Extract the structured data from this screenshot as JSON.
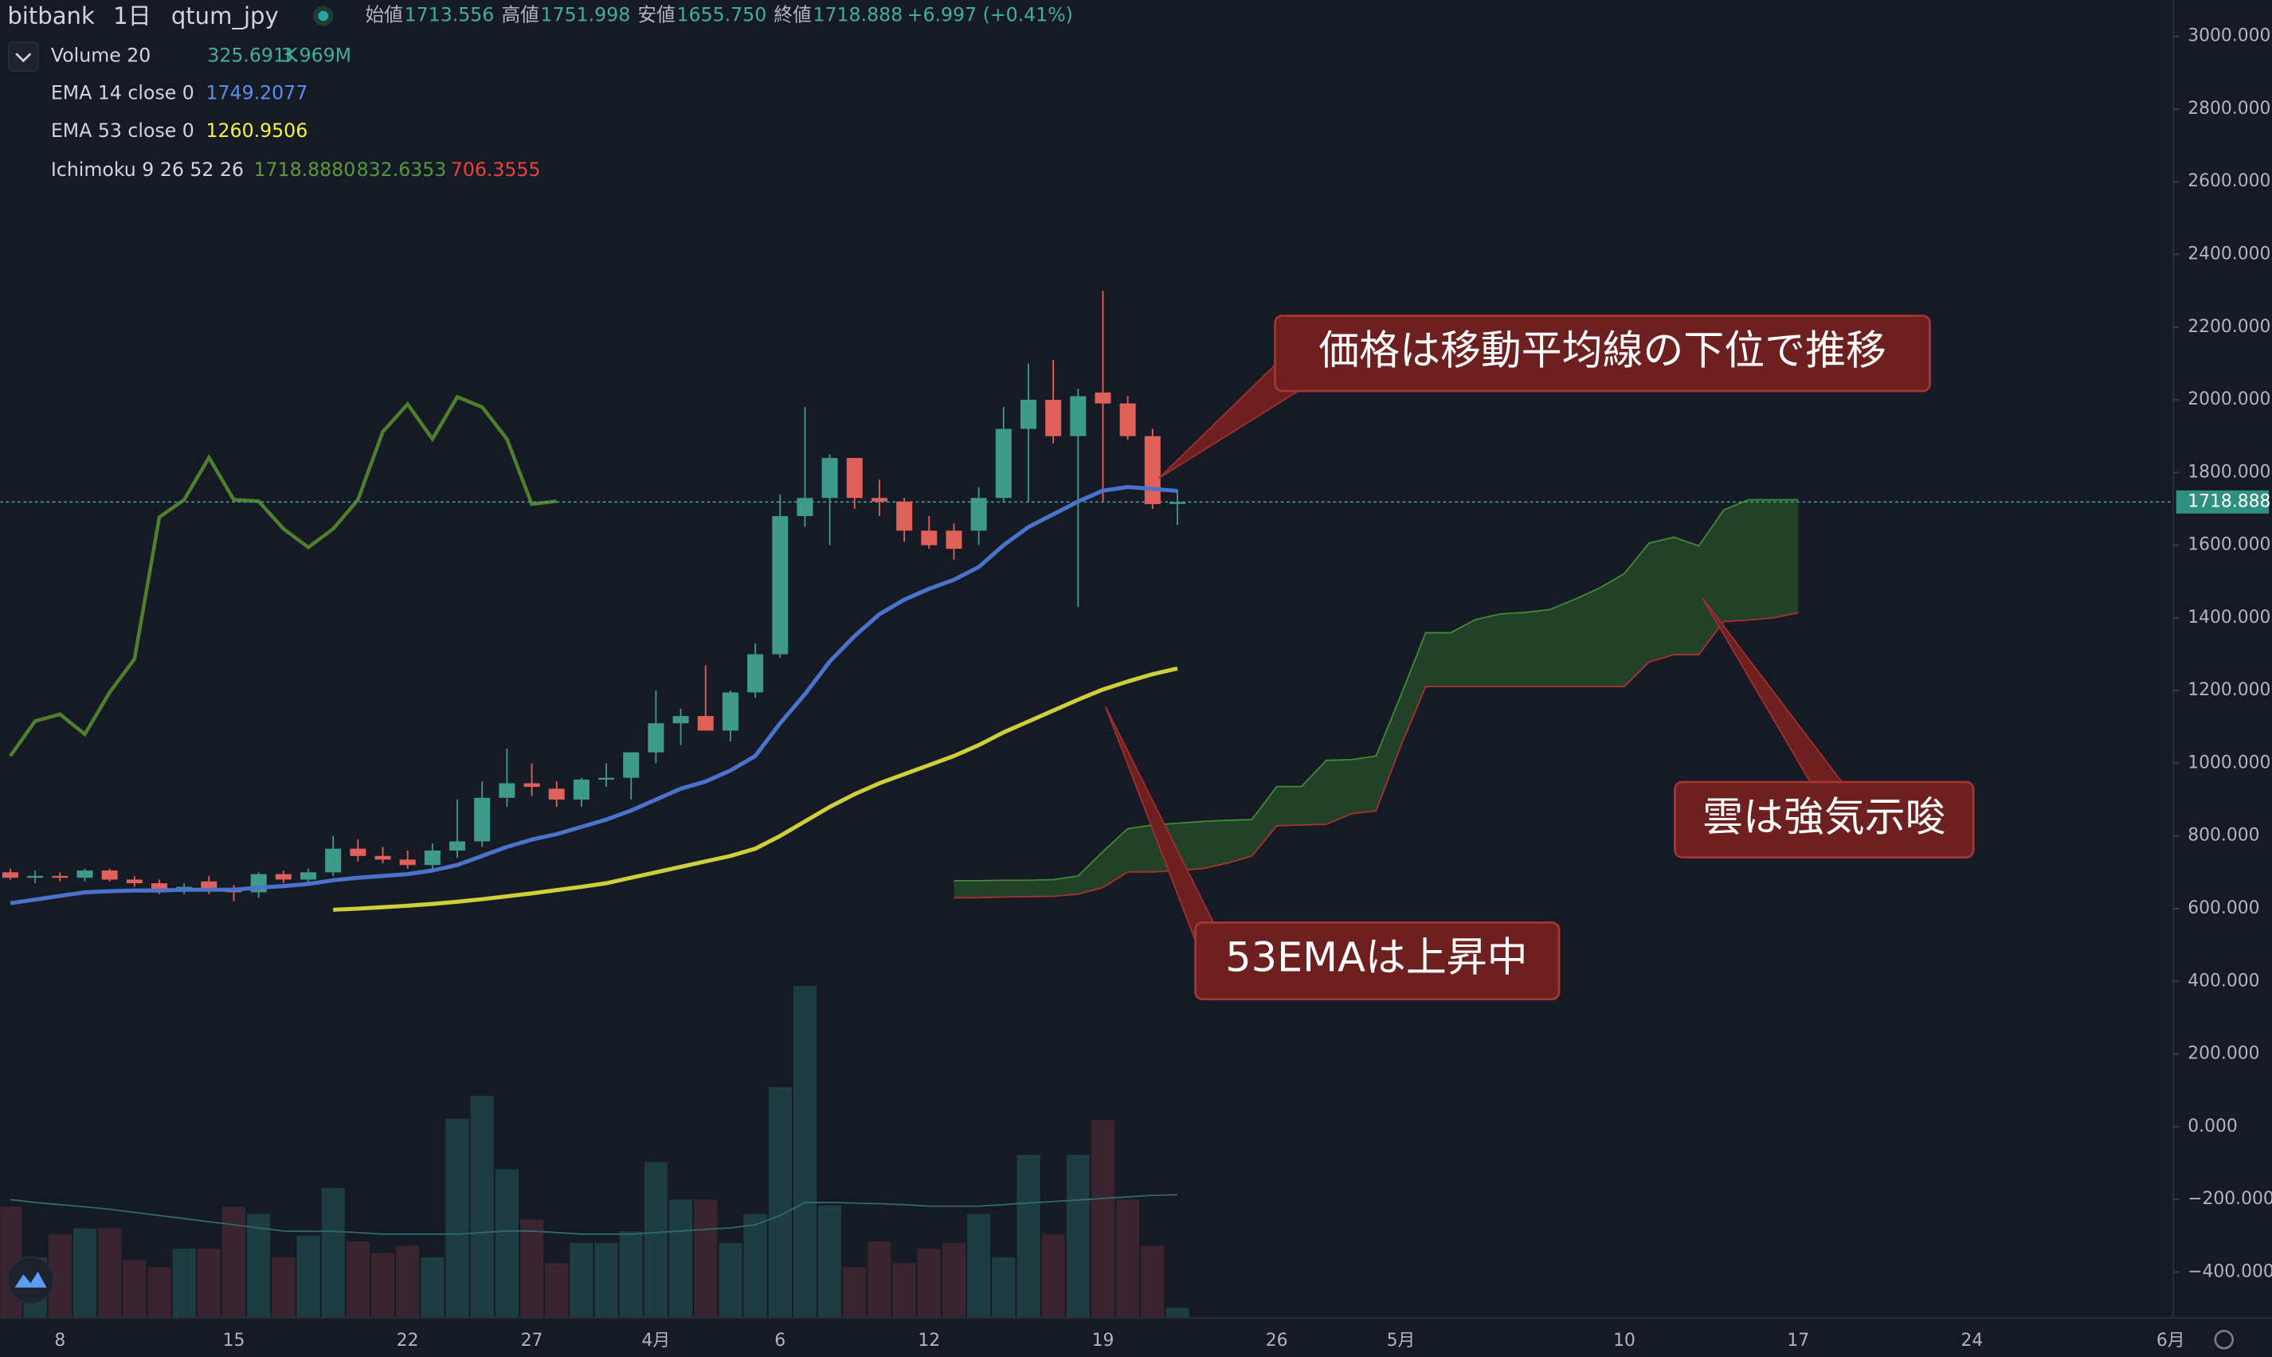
{
  "header": {
    "exchange": "bitbank",
    "interval": "1日",
    "symbol": "qtum_jpy",
    "ohlc": [
      {
        "label": "始値",
        "value": "1713.556"
      },
      {
        "label": "高値",
        "value": "1751.998"
      },
      {
        "label": "安値",
        "value": "1655.750"
      },
      {
        "label": "終値",
        "value": "1718.888"
      }
    ],
    "change": "+6.997 (+0.41%)"
  },
  "annotations": [
    {
      "text": "価格は移動平均線の下位で推移"
    },
    {
      "text": "雲は強気示唆"
    },
    {
      "text": "53EMAは上昇中"
    }
  ],
  "chart_data": {
    "type": "candlestick",
    "categories": [
      null,
      null,
      "8",
      null,
      null,
      null,
      null,
      null,
      null,
      "15",
      null,
      null,
      null,
      null,
      null,
      null,
      "22",
      null,
      null,
      null,
      null,
      "27",
      null,
      null,
      null,
      null,
      "4月",
      null,
      null,
      null,
      null,
      "6",
      null,
      null,
      null,
      null,
      null,
      "12",
      null,
      null,
      null,
      null,
      null,
      null,
      "19",
      null,
      null,
      null,
      null,
      null,
      null,
      "26",
      null,
      null,
      null,
      null,
      "5月",
      null,
      null,
      null,
      null,
      null,
      null,
      null,
      null,
      "10",
      null,
      null,
      null,
      null,
      null,
      null,
      "17",
      null,
      null,
      null,
      null,
      null,
      null,
      "24",
      null,
      null,
      null,
      null,
      null,
      null,
      null,
      "6月"
    ],
    "ylim": [
      -526,
      3100
    ],
    "yticks": [
      {
        "value": 3000,
        "label": "3000.000"
      },
      {
        "value": 2800,
        "label": "2800.000"
      },
      {
        "value": 2600,
        "label": "2600.000"
      },
      {
        "value": 2400,
        "label": "2400.000"
      },
      {
        "value": 2200,
        "label": "2200.000"
      },
      {
        "value": 2000,
        "label": "2000.000"
      },
      {
        "value": 1800,
        "label": "1800.000"
      },
      {
        "value": 1600,
        "label": "1600.000"
      },
      {
        "value": 1400,
        "label": "1400.000"
      },
      {
        "value": 1200,
        "label": "1200.000"
      },
      {
        "value": 1000,
        "label": "1000.000"
      },
      {
        "value": 800,
        "label": "800.000"
      },
      {
        "value": 600,
        "label": "600.000"
      },
      {
        "value": 400,
        "label": "400.000"
      },
      {
        "value": 200,
        "label": "200.000"
      },
      {
        "value": 0,
        "label": "0.000"
      },
      {
        "value": -200,
        "label": "−200.000"
      },
      {
        "value": -400,
        "label": "−400.000"
      }
    ],
    "last_price": {
      "value": 1718.888,
      "label": "1718.888"
    },
    "up_color": "#3e9a8b",
    "down_color": "#e0605a",
    "open": [
      700,
      685,
      690,
      685,
      705,
      680,
      670,
      655,
      675,
      650,
      645,
      695,
      680,
      700,
      765,
      745,
      735,
      720,
      760,
      785,
      905,
      945,
      930,
      900,
      955,
      960,
      1030,
      1110,
      1130,
      1090,
      1195,
      1300,
      1680,
      1730,
      1840,
      1730,
      1720,
      1640,
      1640,
      1640,
      1730,
      1920,
      2000,
      1900,
      2020,
      1990,
      1900,
      1713.556,
      null,
      null,
      null,
      null,
      null,
      null,
      null,
      null,
      null,
      null,
      null,
      null,
      null,
      null,
      null,
      null,
      null,
      null,
      null,
      null,
      null,
      null,
      null,
      null,
      null,
      null,
      null,
      null,
      null,
      null,
      null,
      null,
      null,
      null,
      null,
      null,
      null,
      null,
      null,
      null
    ],
    "high": [
      710,
      705,
      700,
      710,
      710,
      690,
      680,
      670,
      690,
      665,
      700,
      705,
      710,
      800,
      790,
      770,
      760,
      780,
      900,
      950,
      1040,
      1000,
      950,
      960,
      1000,
      1030,
      1200,
      1150,
      1270,
      1200,
      1330,
      1740,
      1980,
      1850,
      1840,
      1780,
      1730,
      1680,
      1660,
      1760,
      1980,
      2100,
      2110,
      2030,
      2300,
      2010,
      1920,
      1751.998,
      null,
      null,
      null,
      null,
      null,
      null,
      null,
      null,
      null,
      null,
      null,
      null,
      null,
      null,
      null,
      null,
      null,
      null,
      null,
      null,
      null,
      null,
      null,
      null,
      null,
      null,
      null,
      null,
      null,
      null,
      null,
      null,
      null,
      null,
      null,
      null,
      null,
      null,
      null,
      null
    ],
    "low": [
      680,
      670,
      675,
      675,
      675,
      660,
      640,
      640,
      640,
      620,
      630,
      670,
      670,
      690,
      730,
      725,
      710,
      700,
      740,
      770,
      880,
      910,
      880,
      880,
      935,
      900,
      1000,
      1050,
      1100,
      1060,
      1180,
      1290,
      1650,
      1600,
      1700,
      1680,
      1610,
      1590,
      1560,
      1600,
      1720,
      1720,
      1880,
      1430,
      1720,
      1890,
      1700,
      1655.75,
      null,
      null,
      null,
      null,
      null,
      null,
      null,
      null,
      null,
      null,
      null,
      null,
      null,
      null,
      null,
      null,
      null,
      null,
      null,
      null,
      null,
      null,
      null,
      null,
      null,
      null,
      null,
      null,
      null,
      null,
      null,
      null,
      null,
      null,
      null,
      null,
      null,
      null,
      null,
      null
    ],
    "close": [
      685,
      690,
      685,
      705,
      680,
      670,
      650,
      660,
      650,
      645,
      695,
      680,
      700,
      765,
      745,
      735,
      720,
      760,
      785,
      905,
      945,
      935,
      900,
      955,
      960,
      1030,
      1110,
      1130,
      1090,
      1195,
      1300,
      1680,
      1730,
      1840,
      1730,
      1720,
      1640,
      1600,
      1590,
      1730,
      1920,
      2000,
      1900,
      2010,
      1990,
      1900,
      1713,
      1718.888,
      null,
      null,
      null,
      null,
      null,
      null,
      null,
      null,
      null,
      null,
      null,
      null,
      null,
      null,
      null,
      null,
      null,
      null,
      null,
      null,
      null,
      null,
      null,
      null,
      null,
      null,
      null,
      null,
      null,
      null,
      null,
      null,
      null,
      null,
      null,
      null,
      null,
      null,
      null,
      null
    ],
    "series": [
      {
        "name": "EMA 14 close 0",
        "color": "#4a74cc",
        "value_label_color": "#5b8def",
        "value_label": "1749.2077",
        "values": [
          615,
          625,
          635,
          645,
          648,
          650,
          650,
          652,
          652,
          652,
          658,
          662,
          668,
          678,
          685,
          690,
          695,
          705,
          720,
          745,
          770,
          790,
          805,
          825,
          845,
          870,
          900,
          930,
          950,
          980,
          1020,
          1110,
          1190,
          1280,
          1350,
          1410,
          1450,
          1480,
          1505,
          1540,
          1600,
          1650,
          1685,
          1720,
          1750,
          1760,
          1755,
          1749.2077,
          null,
          null,
          null,
          null,
          null,
          null,
          null,
          null,
          null,
          null,
          null,
          null,
          null,
          null,
          null,
          null,
          null,
          null,
          null,
          null,
          null,
          null,
          null,
          null,
          null,
          null,
          null,
          null,
          null,
          null,
          null,
          null,
          null,
          null,
          null,
          null,
          null,
          null,
          null,
          null
        ]
      },
      {
        "name": "EMA 53 close 0",
        "color": "#cfcf3a",
        "value_label_color": "#f5f53c",
        "value_label": "1260.9506",
        "values": [
          null,
          null,
          null,
          null,
          null,
          null,
          null,
          null,
          null,
          null,
          null,
          null,
          null,
          597,
          600,
          604,
          608,
          613,
          619,
          626,
          634,
          642,
          651,
          660,
          670,
          685,
          700,
          715,
          730,
          745,
          765,
          800,
          840,
          880,
          915,
          945,
          970,
          995,
          1020,
          1050,
          1085,
          1115,
          1145,
          1175,
          1203,
          1225,
          1245,
          1260.9506,
          null,
          null,
          null,
          null,
          null,
          null,
          null,
          null,
          null,
          null,
          null,
          null,
          null,
          null,
          null,
          null,
          null,
          null,
          null,
          null,
          null,
          null,
          null,
          null,
          null,
          null,
          null,
          null,
          null,
          null,
          null,
          null,
          null,
          null,
          null,
          null,
          null,
          null,
          null,
          null
        ]
      }
    ],
    "ichimoku": {
      "name": "Ichimoku 9 26 52 26",
      "cloud_color": "rgba(60,140,50,0.35)",
      "lines": [
        {
          "color": "#4f7f2c",
          "value_label_color": "#5f9a3a",
          "value_label": "1718.8880",
          "values": [
            1020,
            1116,
            1135,
            1080,
            1195,
            1287,
            1677,
            1725,
            1841,
            1725,
            1721,
            1645,
            1594,
            1645,
            1725,
            1912,
            1988,
            1892,
            2008,
            1980,
            1892,
            1713,
            1721,
            null,
            null,
            null,
            null,
            null,
            null,
            null,
            null,
            null,
            null,
            null,
            null,
            null,
            null,
            null,
            null,
            null,
            null,
            null,
            null,
            null,
            null,
            null,
            null,
            null,
            null,
            null,
            null,
            null,
            null,
            null,
            null,
            null,
            null,
            null,
            null,
            null,
            null,
            null,
            null,
            null,
            null,
            null,
            null,
            null,
            null,
            null,
            null,
            null,
            null,
            null,
            null,
            null,
            null,
            null,
            null,
            null,
            null,
            null,
            null,
            null,
            null,
            null,
            null,
            null
          ]
        },
        {
          "color": "#3f8a36",
          "value_label_color": "#4f9a3f",
          "value_label": "832.6353",
          "values": [
            null,
            null,
            null,
            null,
            null,
            null,
            null,
            null,
            null,
            null,
            null,
            null,
            null,
            null,
            null,
            null,
            null,
            null,
            null,
            null,
            null,
            null,
            null,
            null,
            null,
            null,
            null,
            null,
            null,
            null,
            null,
            null,
            null,
            null,
            null,
            null,
            null,
            null,
            677,
            677,
            678,
            678,
            680,
            690,
            757,
            820,
            830,
            835,
            840,
            843,
            845,
            936,
            936,
            1008,
            1010,
            1020,
            1187,
            1359,
            1359,
            1395,
            1411,
            1415,
            1423,
            1451,
            1482,
            1522,
            1606,
            1622,
            1598,
            1697,
            1725,
            1725,
            1725,
            null,
            null,
            null,
            null,
            null,
            null,
            null,
            null,
            null,
            null,
            null,
            null,
            null,
            null,
            null
          ]
        },
        {
          "color": "#a8322c",
          "value_label_color": "#e8433a",
          "value_label": "706.3555",
          "values": [
            null,
            null,
            null,
            null,
            null,
            null,
            null,
            null,
            null,
            null,
            null,
            null,
            null,
            null,
            null,
            null,
            null,
            null,
            null,
            null,
            null,
            null,
            null,
            null,
            null,
            null,
            null,
            null,
            null,
            null,
            null,
            null,
            null,
            null,
            null,
            null,
            null,
            null,
            630,
            630,
            632,
            633,
            634,
            640,
            658,
            701,
            701,
            705,
            710,
            725,
            745,
            828,
            830,
            832,
            861,
            869,
            1048,
            1211,
            1211,
            1211,
            1211,
            1211,
            1211,
            1211,
            1211,
            1211,
            1279,
            1299,
            1299,
            1390,
            1394,
            1400,
            1414,
            null,
            null,
            null,
            null,
            null,
            null,
            null,
            null,
            null,
            null,
            null,
            null,
            null,
            null,
            null
          ]
        }
      ]
    },
    "volume": {
      "name": "Volume 20",
      "value_label": "325.691K",
      "ylim": [
        0,
        21000000
      ],
      "up_color": "#1e3d42",
      "down_color": "#3a2430",
      "values": [
        3580000,
        1953000,
        2697000,
        2883000,
        2883000,
        1860000,
        1628000,
        2232000,
        2232000,
        3580000,
        3348000,
        1953000,
        2650000,
        4185000,
        2464000,
        2093000,
        2325000,
        1953000,
        6417000,
        7161000,
        4790000,
        3162000,
        1767000,
        2418000,
        2418000,
        2790000,
        5022000,
        3813000,
        3813000,
        2418000,
        3348000,
        7440000,
        10695000,
        3627000,
        1628000,
        2464000,
        1767000,
        2232000,
        2418000,
        3348000,
        1953000,
        5254000,
        2697000,
        5254000,
        6370000,
        3813000,
        2325000,
        325691,
        null,
        null,
        null,
        null,
        null,
        null,
        null,
        null,
        null,
        null,
        null,
        null,
        null,
        null,
        null,
        null,
        null,
        null,
        null,
        null,
        null,
        null,
        null,
        null,
        null,
        null,
        null,
        null,
        null,
        null,
        null,
        null,
        null,
        null,
        null,
        null,
        null,
        null,
        null,
        null
      ],
      "ma": {
        "color": "#2f6b6a",
        "value_label": "3.969M",
        "values": [
          3813000,
          3720000,
          3650000,
          3580000,
          3500000,
          3400000,
          3300000,
          3200000,
          3100000,
          3000000,
          2900000,
          2800000,
          2790000,
          2790000,
          2750000,
          2700000,
          2700000,
          2700000,
          2700000,
          2750000,
          2800000,
          2800000,
          2750000,
          2700000,
          2700000,
          2700000,
          2750000,
          2800000,
          2850000,
          2900000,
          3000000,
          3300000,
          3720000,
          3720000,
          3700000,
          3680000,
          3650000,
          3600000,
          3600000,
          3600000,
          3650000,
          3700000,
          3750000,
          3800000,
          3850000,
          3900000,
          3950000,
          3969000,
          null,
          null,
          null,
          null,
          null,
          null,
          null,
          null,
          null,
          null,
          null,
          null,
          null,
          null,
          null,
          null,
          null,
          null,
          null,
          null,
          null,
          null,
          null,
          null,
          null,
          null,
          null,
          null,
          null,
          null,
          null,
          null,
          null,
          null,
          null,
          null,
          null,
          null,
          null,
          null
        ]
      }
    }
  }
}
